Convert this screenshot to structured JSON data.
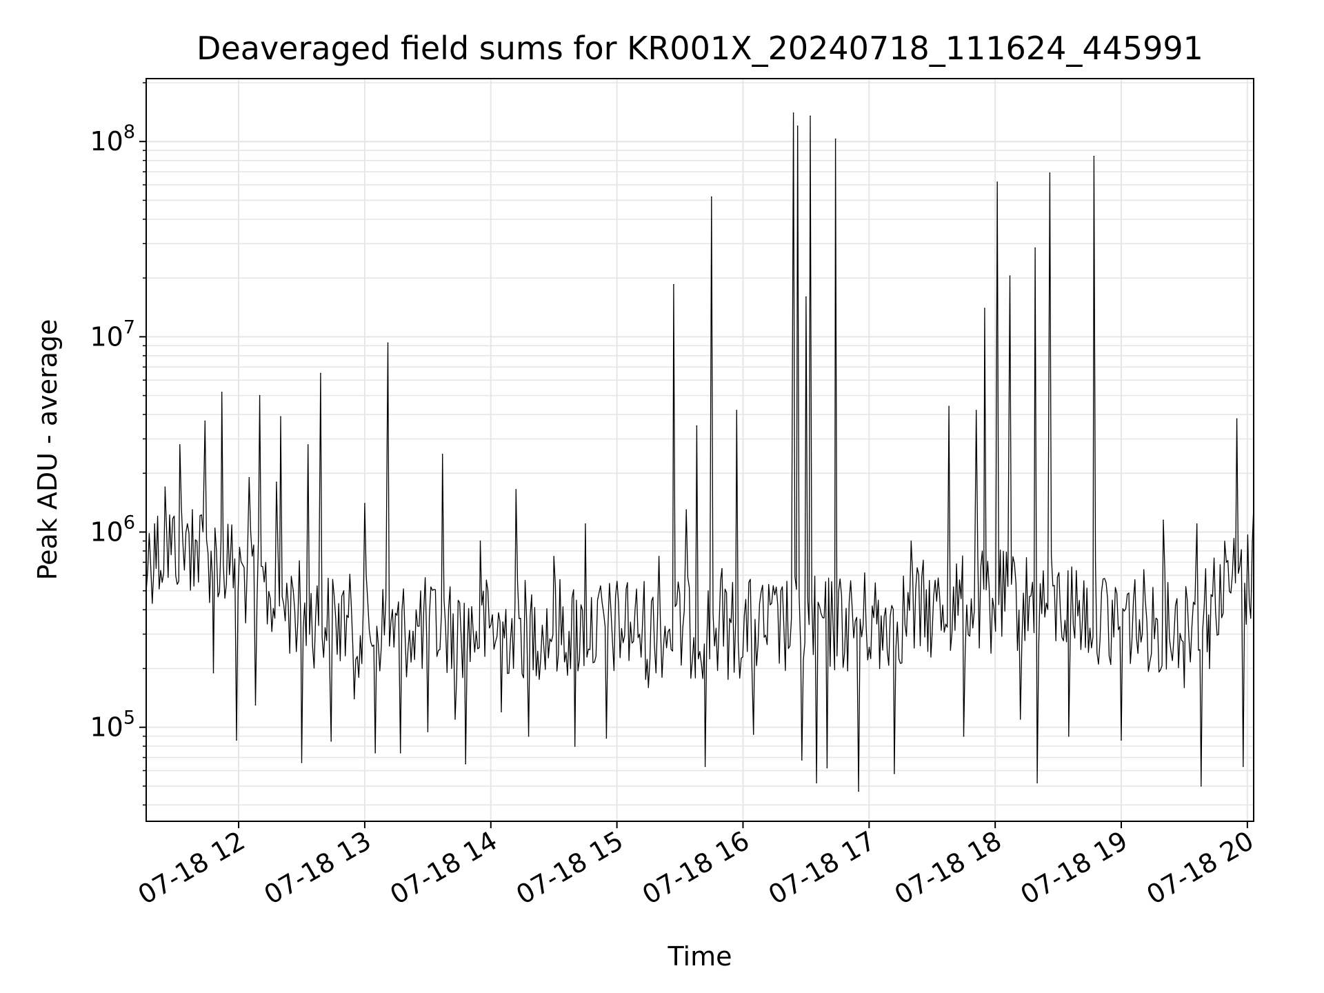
{
  "chart_data": {
    "type": "line",
    "title": "Deaveraged field sums for KR001X_20240718_111624_445991",
    "xlabel": "Time",
    "ylabel": "Peak ADU - average",
    "yscale": "log",
    "ylim": [
      33000,
      210000000
    ],
    "xlim": [
      "2024-07-18 11:16",
      "2024-07-18 20:03"
    ],
    "x_ticks": [
      {
        "value": "2024-07-18 12:00",
        "label": "07-18 12"
      },
      {
        "value": "2024-07-18 13:00",
        "label": "07-18 13"
      },
      {
        "value": "2024-07-18 14:00",
        "label": "07-18 14"
      },
      {
        "value": "2024-07-18 15:00",
        "label": "07-18 15"
      },
      {
        "value": "2024-07-18 16:00",
        "label": "07-18 16"
      },
      {
        "value": "2024-07-18 17:00",
        "label": "07-18 17"
      },
      {
        "value": "2024-07-18 18:00",
        "label": "07-18 18"
      },
      {
        "value": "2024-07-18 19:00",
        "label": "07-18 19"
      },
      {
        "value": "2024-07-18 20:00",
        "label": "07-18 20"
      }
    ],
    "y_ticks": [
      {
        "value": 100000,
        "base": "10",
        "exp": "5"
      },
      {
        "value": 1000000,
        "base": "10",
        "exp": "6"
      },
      {
        "value": 10000000,
        "base": "10",
        "exp": "7"
      },
      {
        "value": 100000000,
        "base": "10",
        "exp": "8"
      }
    ],
    "grid": true,
    "line_color": "#000000",
    "grid_color": "#e6e6e6",
    "series": [
      {
        "points": [
          [
            "2024-07-18 11:16",
            500000
          ],
          [
            "2024-07-18 11:20",
            1100000
          ],
          [
            "2024-07-18 11:25",
            1700000
          ],
          [
            "2024-07-18 11:32",
            2800000
          ],
          [
            "2024-07-18 11:38",
            1300000
          ],
          [
            "2024-07-18 11:44",
            3700000
          ],
          [
            "2024-07-18 11:48",
            190000
          ],
          [
            "2024-07-18 11:52",
            5200000
          ],
          [
            "2024-07-18 11:56",
            700000
          ],
          [
            "2024-07-18 11:59",
            86000
          ],
          [
            "2024-07-18 12:05",
            1900000
          ],
          [
            "2024-07-18 12:08",
            130000
          ],
          [
            "2024-07-18 12:10",
            5000000
          ],
          [
            "2024-07-18 12:18",
            1800000
          ],
          [
            "2024-07-18 12:20",
            3900000
          ],
          [
            "2024-07-18 12:26",
            500000
          ],
          [
            "2024-07-18 12:30",
            66000
          ],
          [
            "2024-07-18 12:33",
            2800000
          ],
          [
            "2024-07-18 12:39",
            6500000
          ],
          [
            "2024-07-18 12:44",
            85000
          ],
          [
            "2024-07-18 12:50",
            500000
          ],
          [
            "2024-07-18 12:55",
            140000
          ],
          [
            "2024-07-18 13:00",
            1400000
          ],
          [
            "2024-07-18 13:05",
            74000
          ],
          [
            "2024-07-18 13:11",
            9300000
          ],
          [
            "2024-07-18 13:17",
            74000
          ],
          [
            "2024-07-18 13:23",
            310000
          ],
          [
            "2024-07-18 13:30",
            95000
          ],
          [
            "2024-07-18 13:37",
            2500000
          ],
          [
            "2024-07-18 13:43",
            110000
          ],
          [
            "2024-07-18 13:48",
            65000
          ],
          [
            "2024-07-18 13:55",
            900000
          ],
          [
            "2024-07-18 14:05",
            120000
          ],
          [
            "2024-07-18 14:12",
            1650000
          ],
          [
            "2024-07-18 14:18",
            90000
          ],
          [
            "2024-07-18 14:30",
            750000
          ],
          [
            "2024-07-18 14:40",
            80000
          ],
          [
            "2024-07-18 14:45",
            1100000
          ],
          [
            "2024-07-18 14:55",
            88000
          ],
          [
            "2024-07-18 15:05",
            550000
          ],
          [
            "2024-07-18 15:15",
            160000
          ],
          [
            "2024-07-18 15:20",
            750000
          ],
          [
            "2024-07-18 15:27",
            18500000
          ],
          [
            "2024-07-18 15:33",
            1300000
          ],
          [
            "2024-07-18 15:38",
            3500000
          ],
          [
            "2024-07-18 15:42",
            63000
          ],
          [
            "2024-07-18 15:45",
            52000000
          ],
          [
            "2024-07-18 15:50",
            650000
          ],
          [
            "2024-07-18 15:57",
            4200000
          ],
          [
            "2024-07-18 16:05",
            92000
          ],
          [
            "2024-07-18 16:18",
            500000
          ],
          [
            "2024-07-18 16:24",
            140000000
          ],
          [
            "2024-07-18 16:26",
            120000000
          ],
          [
            "2024-07-18 16:28",
            68000
          ],
          [
            "2024-07-18 16:30",
            16000000
          ],
          [
            "2024-07-18 16:32",
            135000000
          ],
          [
            "2024-07-18 16:35",
            52000
          ],
          [
            "2024-07-18 16:40",
            62000
          ],
          [
            "2024-07-18 16:44",
            103000000
          ],
          [
            "2024-07-18 16:55",
            47000
          ],
          [
            "2024-07-18 17:05",
            200000
          ],
          [
            "2024-07-18 17:12",
            58000
          ],
          [
            "2024-07-18 17:20",
            900000
          ],
          [
            "2024-07-18 17:30",
            300000
          ],
          [
            "2024-07-18 17:38",
            4400000
          ],
          [
            "2024-07-18 17:45",
            90000
          ],
          [
            "2024-07-18 17:51",
            4200000
          ],
          [
            "2024-07-18 17:55",
            14000000
          ],
          [
            "2024-07-18 17:58",
            240000
          ],
          [
            "2024-07-18 18:01",
            62000000
          ],
          [
            "2024-07-18 18:07",
            20500000
          ],
          [
            "2024-07-18 18:12",
            110000
          ],
          [
            "2024-07-18 18:19",
            28500000
          ],
          [
            "2024-07-18 18:20",
            52000
          ],
          [
            "2024-07-18 18:26",
            69000000
          ],
          [
            "2024-07-18 18:35",
            90000
          ],
          [
            "2024-07-18 18:47",
            84000000
          ],
          [
            "2024-07-18 18:55",
            210000
          ],
          [
            "2024-07-18 19:00",
            86000
          ],
          [
            "2024-07-18 19:10",
            300000
          ],
          [
            "2024-07-18 19:20",
            1150000
          ],
          [
            "2024-07-18 19:30",
            160000
          ],
          [
            "2024-07-18 19:36",
            1100000
          ],
          [
            "2024-07-18 19:38",
            50000
          ],
          [
            "2024-07-18 19:42",
            200000
          ],
          [
            "2024-07-18 19:50",
            700000
          ],
          [
            "2024-07-18 19:55",
            3800000
          ],
          [
            "2024-07-18 19:58",
            63000
          ],
          [
            "2024-07-18 20:03",
            1350000
          ]
        ]
      }
    ]
  }
}
